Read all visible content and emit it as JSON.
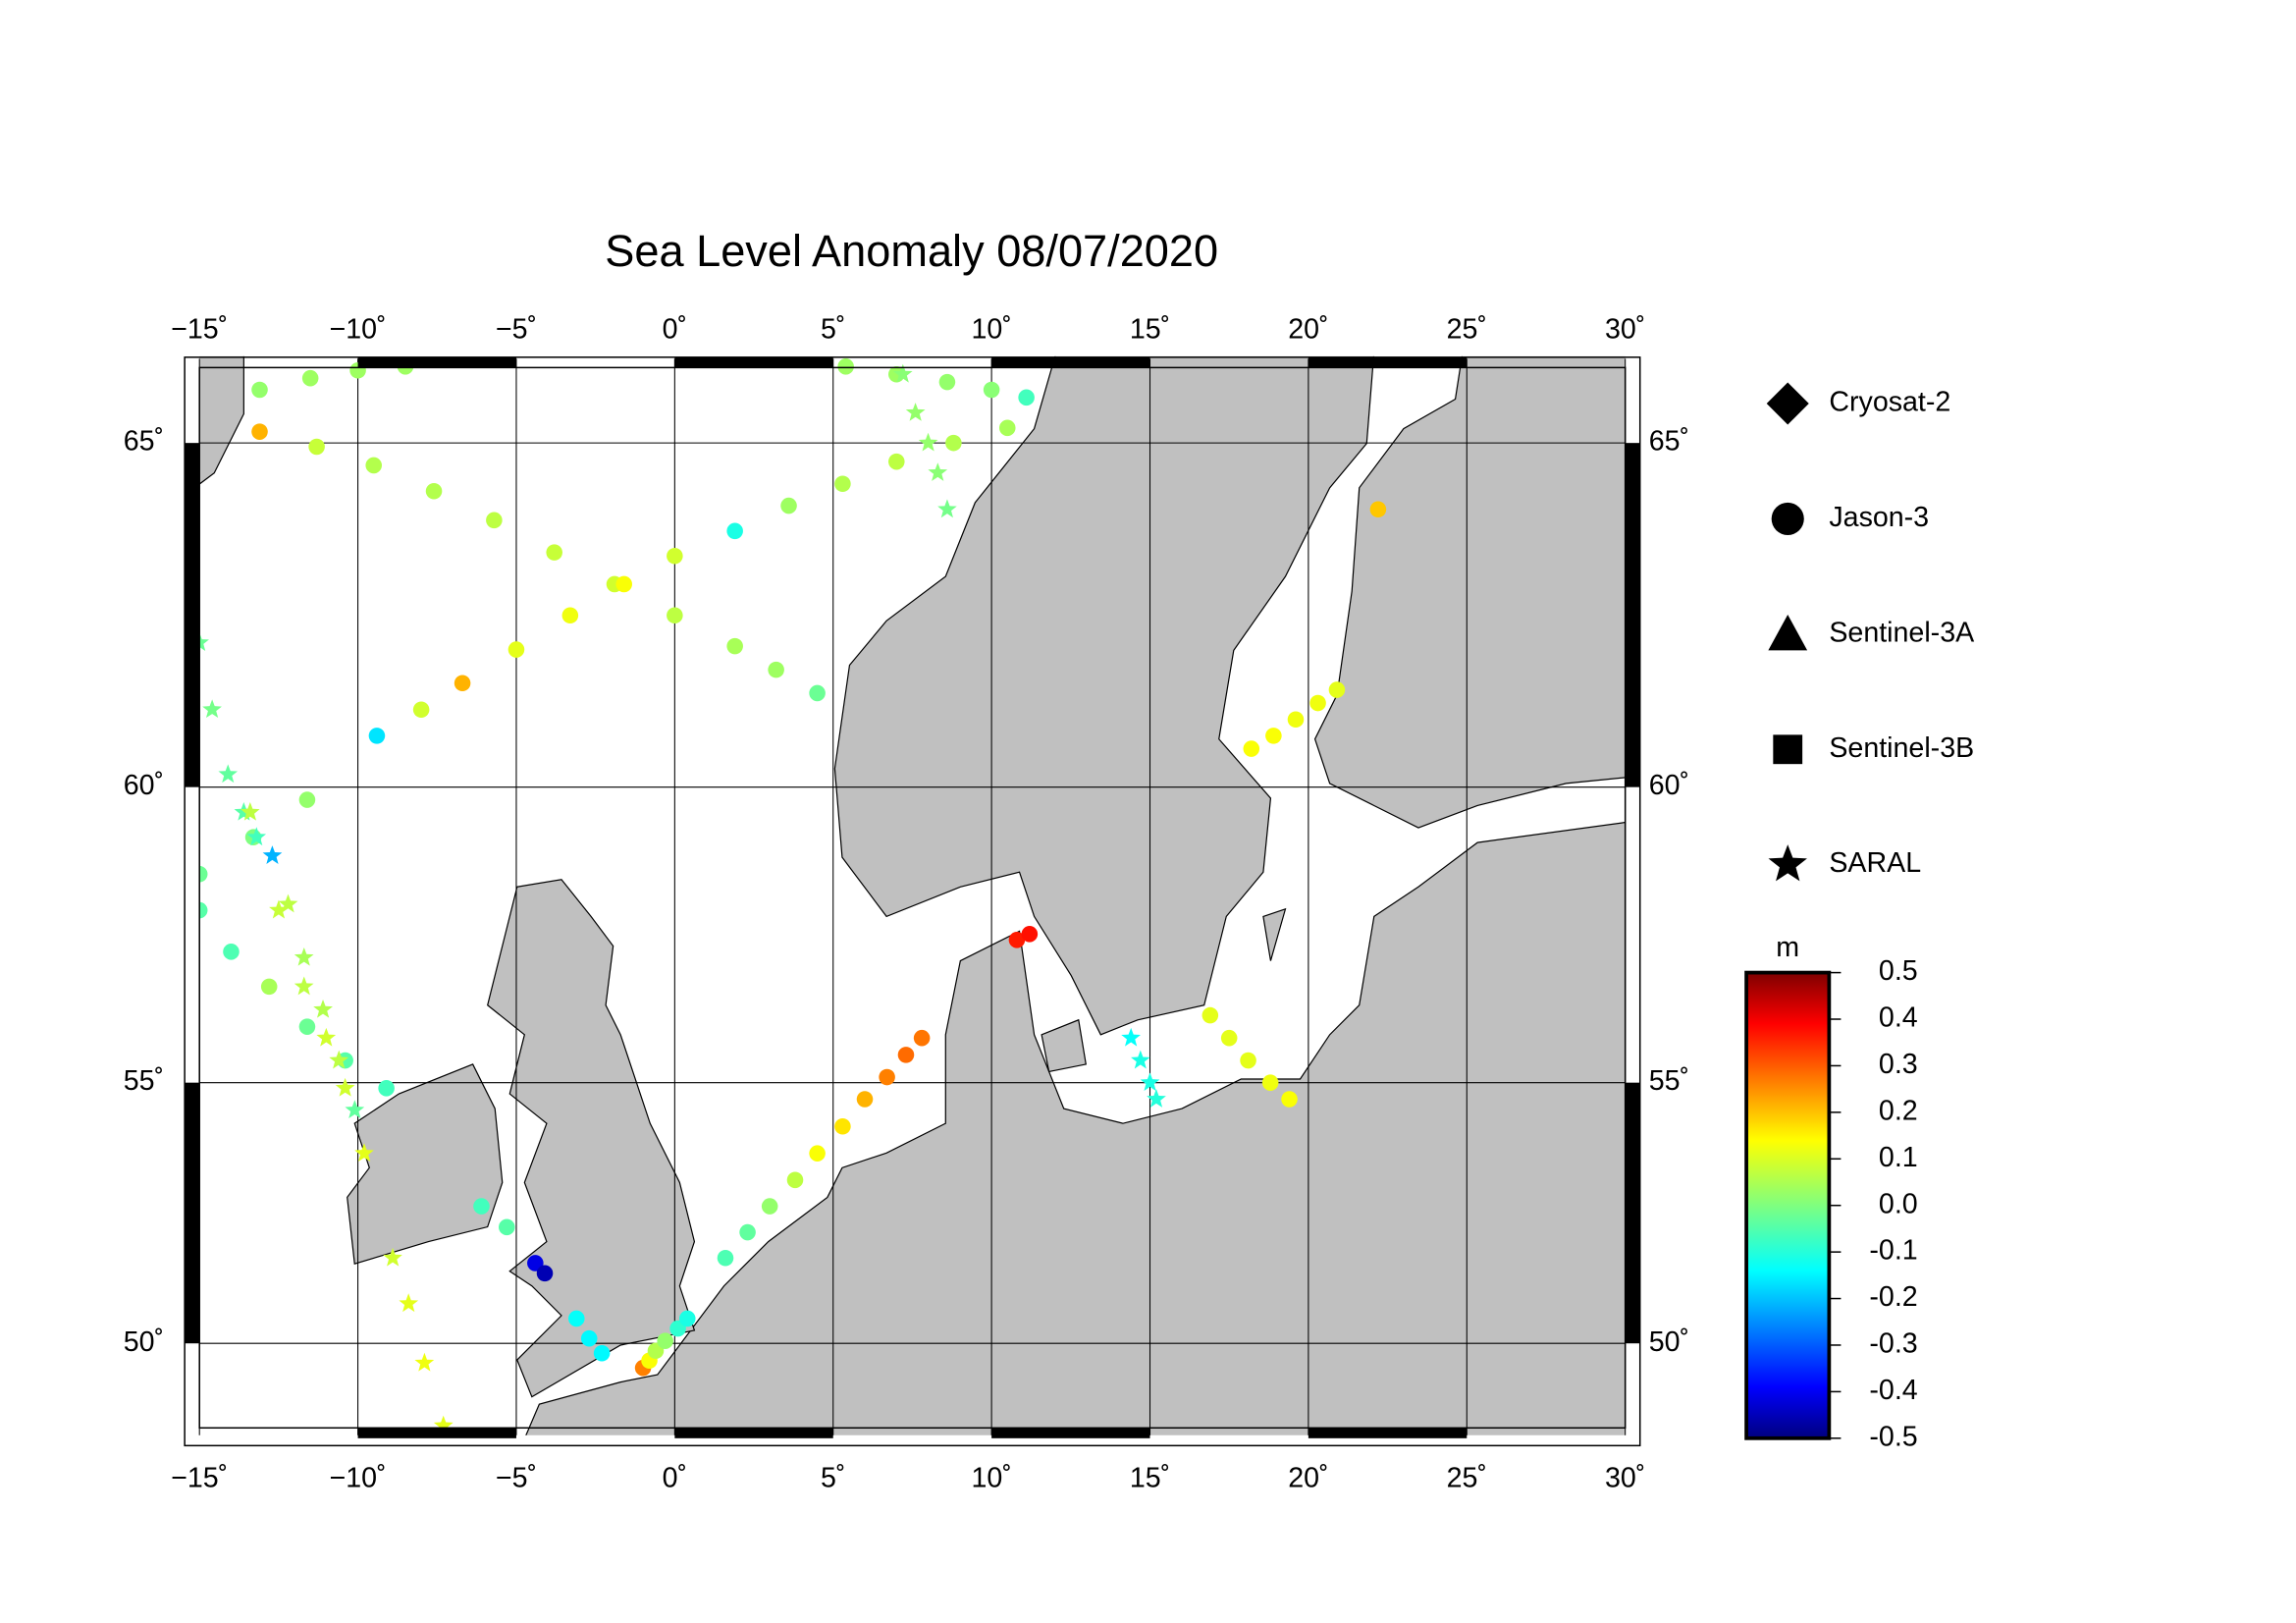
{
  "chart_data": {
    "type": "map",
    "title": "Sea Level Anomaly 08/07/2020",
    "xlim": [
      -15,
      30
    ],
    "ylim": [
      48.1,
      66.1
    ],
    "xticks": [
      {
        "value": -15,
        "label": "−15˚"
      },
      {
        "value": -10,
        "label": "−10˚"
      },
      {
        "value": -5,
        "label": "−5˚"
      },
      {
        "value": 0,
        "label": "0˚"
      },
      {
        "value": 5,
        "label": "5˚"
      },
      {
        "value": 10,
        "label": "10˚"
      },
      {
        "value": 15,
        "label": "15˚"
      },
      {
        "value": 20,
        "label": "20˚"
      },
      {
        "value": 25,
        "label": "25˚"
      },
      {
        "value": 30,
        "label": "30˚"
      }
    ],
    "yticks": [
      {
        "value": 50,
        "label": "50˚"
      },
      {
        "value": 55,
        "label": "55˚"
      },
      {
        "value": 60,
        "label": "60˚"
      },
      {
        "value": 65,
        "label": "65˚"
      }
    ],
    "grid": true,
    "colorbar": {
      "label": "m",
      "lim": [
        -0.5,
        0.5
      ],
      "colormap": "jet",
      "ticks": [
        -0.5,
        -0.4,
        -0.3,
        -0.2,
        -0.1,
        {
          "value": 0,
          "label": "0.0"
        },
        0.1,
        0.2,
        0.3,
        0.4,
        0.5
      ]
    },
    "series": [
      {
        "name": "Cryosat-2",
        "marker": "diamond",
        "lon": [],
        "lat": [],
        "values": []
      },
      {
        "name": "Jason-3",
        "marker": "circle",
        "lon": [
          -13.1,
          -11.5,
          -10,
          -8.5,
          -13.1,
          -11.3,
          -9.5,
          -7.6,
          -5.7,
          -3.8,
          -1.9,
          0,
          1.9,
          3.2,
          4.5,
          -15,
          -13.3,
          -11.6,
          -9.4,
          -8,
          -6.7,
          -5,
          -3.3,
          -1.6,
          0,
          1.9,
          3.6,
          5.3,
          7,
          8.8,
          10.5,
          5.4,
          7,
          8.6,
          10,
          11.1,
          -15,
          -14,
          -12.8,
          -11.6,
          -10.4,
          -9.1,
          -6.1,
          -5.3,
          -4.4,
          -4.1,
          -3.1,
          -2.7,
          -2.3,
          -1,
          -0.8,
          -0.6,
          -0.3,
          0.1,
          0.4,
          1.6,
          2.3,
          3,
          3.8,
          4.5,
          5.3,
          6,
          6.7,
          7.3,
          7.8,
          10.8,
          11.2,
          16.9,
          17.5,
          18.1,
          18.8,
          19.4,
          18.2,
          18.9,
          19.6,
          20.3,
          20.9,
          22.2
        ],
        "lat": [
          65.7,
          65.85,
          65.95,
          66.0,
          65.15,
          64.95,
          64.7,
          64.35,
          63.95,
          63.5,
          63.05,
          62.6,
          62.15,
          61.8,
          61.45,
          58.6,
          59.2,
          59.8,
          60.8,
          61.2,
          61.6,
          62.1,
          62.6,
          63.05,
          63.45,
          63.8,
          64.15,
          64.45,
          64.75,
          65.0,
          65.2,
          66.0,
          65.9,
          65.8,
          65.7,
          65.6,
          58.0,
          57.3,
          56.7,
          56.0,
          55.4,
          54.9,
          52.7,
          52.3,
          51.6,
          51.4,
          50.5,
          50.1,
          49.8,
          49.5,
          49.65,
          49.85,
          50.05,
          50.3,
          50.5,
          51.7,
          52.2,
          52.7,
          53.2,
          53.7,
          54.2,
          54.7,
          55.1,
          55.5,
          55.8,
          57.5,
          57.6,
          56.2,
          55.8,
          55.4,
          55.0,
          54.7,
          60.6,
          60.8,
          61.05,
          61.3,
          61.5,
          64.1
        ],
        "values": [
          0.02,
          0.03,
          0.03,
          0.03,
          0.2,
          0.07,
          0.05,
          0.05,
          0.06,
          0.07,
          0.08,
          0.06,
          0.04,
          0.03,
          -0.02,
          -0.02,
          0,
          0.02,
          -0.15,
          0.08,
          0.2,
          0.1,
          0.11,
          0.12,
          0.08,
          -0.1,
          0.03,
          0.05,
          0.06,
          0.05,
          0.04,
          0.03,
          0.03,
          0.02,
          0.01,
          -0.06,
          -0.04,
          -0.05,
          0.04,
          -0.02,
          -0.04,
          -0.06,
          -0.06,
          -0.04,
          -0.4,
          -0.45,
          -0.12,
          -0.13,
          -0.13,
          0.25,
          0.12,
          0.05,
          0.02,
          -0.08,
          -0.1,
          -0.05,
          -0.03,
          0.02,
          0.06,
          0.12,
          0.15,
          0.2,
          0.25,
          0.27,
          0.26,
          0.35,
          0.36,
          0.1,
          0.1,
          0.1,
          0.11,
          0.12,
          0.12,
          0.12,
          0.11,
          0.11,
          0.1,
          0.18
        ]
      },
      {
        "name": "Sentinel-3A",
        "marker": "triangle",
        "lon": [],
        "lat": [],
        "values": []
      },
      {
        "name": "Sentinel-3B",
        "marker": "square",
        "lon": [],
        "lat": [],
        "values": []
      },
      {
        "name": "SARAL",
        "marker": "star",
        "lon": [
          -15,
          -14.6,
          -14.1,
          -13.6,
          -13.2,
          -12.7,
          -12.2,
          -11.7,
          -11.1,
          -10.6,
          -10.1,
          -13.4,
          -12.5,
          -11.7,
          -11,
          -10.4,
          -9.8,
          -8.9,
          -8.4,
          -7.9,
          -7.3,
          7.2,
          7.6,
          8,
          8.3,
          8.6,
          14.4,
          14.7,
          15,
          15.2
        ],
        "lat": [
          62.2,
          61.2,
          60.2,
          59.6,
          59.2,
          58.9,
          58.1,
          57.2,
          56.3,
          55.4,
          54.5,
          59.6,
          58.0,
          56.7,
          55.8,
          54.9,
          53.7,
          51.7,
          50.8,
          49.6,
          48.3,
          65.9,
          65.4,
          65.0,
          64.6,
          64.1,
          55.8,
          55.4,
          55.0,
          54.7
        ],
        "values": [
          -0.02,
          -0.01,
          -0.03,
          -0.04,
          -0.06,
          -0.2,
          0.06,
          0.04,
          0.05,
          0.06,
          -0.03,
          0.06,
          0.07,
          0.06,
          0.08,
          0.08,
          0.1,
          0.08,
          0.1,
          0.11,
          0.1,
          0.01,
          0.02,
          0.02,
          0.01,
          -0.01,
          -0.12,
          -0.1,
          -0.1,
          -0.09
        ]
      }
    ]
  }
}
